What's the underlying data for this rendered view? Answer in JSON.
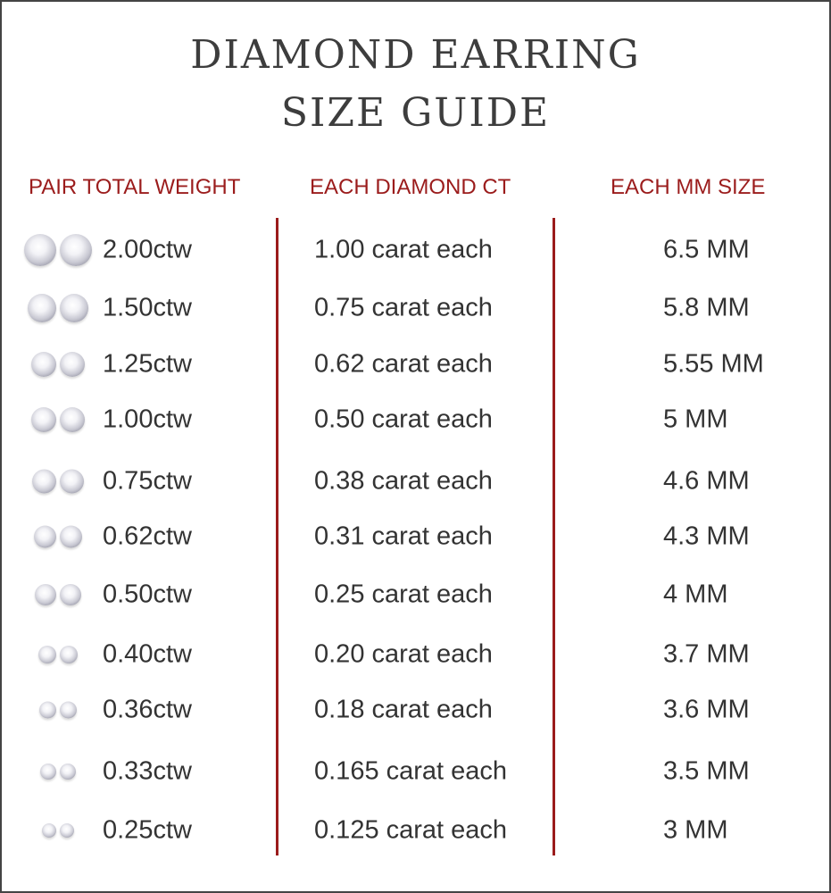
{
  "title": {
    "line1": "DIAMOND EARRING",
    "line2": "SIZE GUIDE"
  },
  "headers": {
    "weight": "PAIR TOTAL WEIGHT",
    "ct": "EACH DIAMOND CT",
    "mm": "EACH MM SIZE"
  },
  "colors": {
    "accent": "#9b1c1c",
    "text": "#333333"
  },
  "rows": [
    {
      "weight": "2.00ctw",
      "ct": "1.00 carat each",
      "mm": "6.5 MM",
      "icon": "diamond-pair-icon"
    },
    {
      "weight": "1.50ctw",
      "ct": "0.75 carat each",
      "mm": "5.8 MM",
      "icon": "diamond-pair-icon"
    },
    {
      "weight": "1.25ctw",
      "ct": "0.62 carat each",
      "mm": "5.55 MM",
      "icon": "diamond-pair-icon"
    },
    {
      "weight": "1.00ctw",
      "ct": "0.50 carat each",
      "mm": "5 MM",
      "icon": "diamond-pair-icon"
    },
    {
      "weight": "0.75ctw",
      "ct": "0.38 carat each",
      "mm": "4.6 MM",
      "icon": "diamond-pair-icon"
    },
    {
      "weight": "0.62ctw",
      "ct": "0.31 carat each",
      "mm": "4.3 MM",
      "icon": "diamond-pair-icon"
    },
    {
      "weight": "0.50ctw",
      "ct": "0.25 carat each",
      "mm": "4 MM",
      "icon": "diamond-pair-icon"
    },
    {
      "weight": "0.40ctw",
      "ct": "0.20 carat each",
      "mm": "3.7 MM",
      "icon": "diamond-pair-icon"
    },
    {
      "weight": "0.36ctw",
      "ct": "0.18 carat each",
      "mm": "3.6 MM",
      "icon": "diamond-pair-icon"
    },
    {
      "weight": "0.33ctw",
      "ct": "0.165 carat each",
      "mm": "3.5 MM",
      "icon": "diamond-pair-icon"
    },
    {
      "weight": "0.25ctw",
      "ct": "0.125 carat each",
      "mm": "3 MM",
      "icon": "diamond-pair-icon"
    }
  ]
}
